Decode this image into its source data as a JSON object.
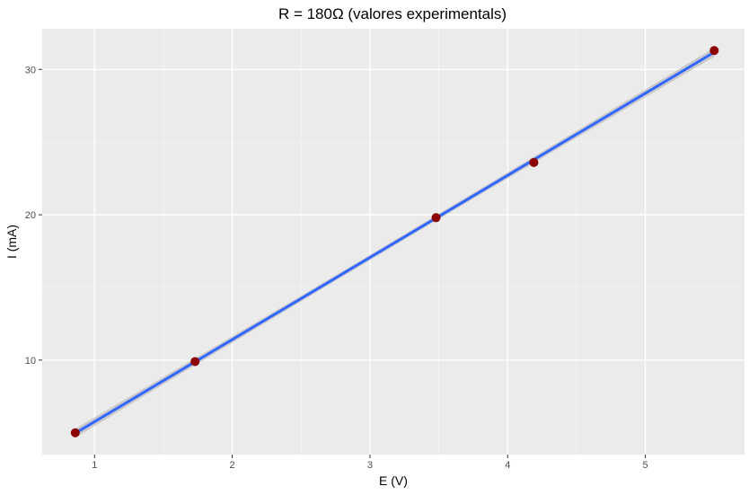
{
  "chart_data": {
    "type": "scatter",
    "title": "R =  180Ω (valores experimentals)",
    "xlabel": "E (V)",
    "ylabel": "I (mA)",
    "xlim": [
      0.62,
      5.72
    ],
    "ylim": [
      3.5,
      32.8
    ],
    "x_ticks": [
      1,
      2,
      3,
      4,
      5
    ],
    "y_ticks": [
      10,
      20,
      30
    ],
    "points": [
      {
        "x": 0.86,
        "y": 5.0
      },
      {
        "x": 1.73,
        "y": 9.9
      },
      {
        "x": 3.48,
        "y": 19.8
      },
      {
        "x": 4.19,
        "y": 23.6
      },
      {
        "x": 5.5,
        "y": 31.3
      }
    ],
    "fit": {
      "method": "linear",
      "x_range": [
        0.86,
        5.5
      ],
      "y_range": [
        5.05,
        31.25
      ],
      "band": "confidence"
    },
    "grid": true,
    "colors": {
      "points": "#8b0000",
      "fit_line": "#3366ff",
      "band": "#bdbdbd",
      "panel": "#ebebeb",
      "grid": "#ffffff"
    }
  }
}
